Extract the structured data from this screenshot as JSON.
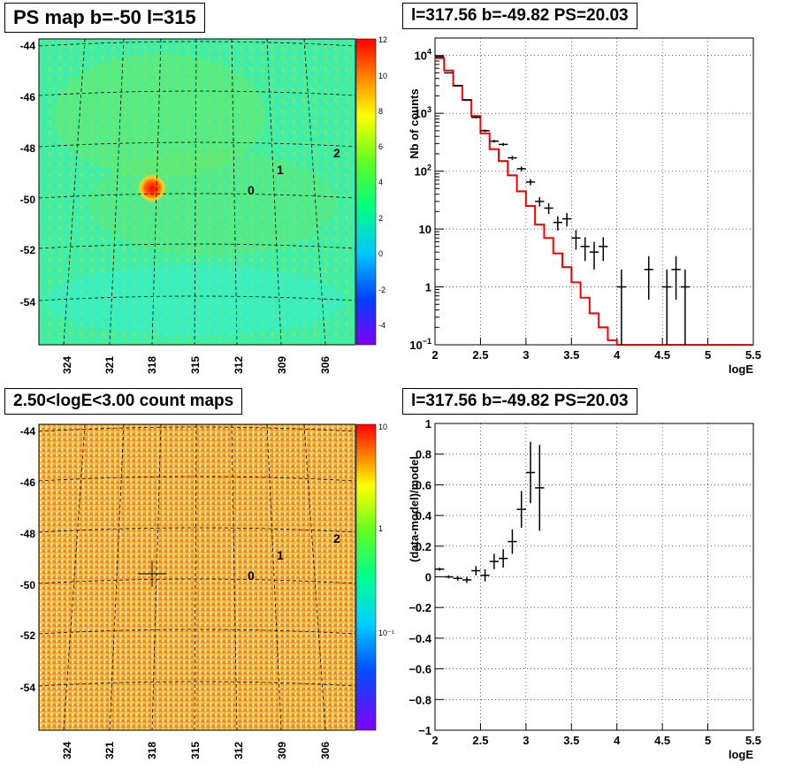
{
  "panels": {
    "top_left": {
      "title": "PS map b=-50 l=315"
    },
    "bottom_left": {
      "title": "2.50<logE<3.00 count maps"
    },
    "top_right": {
      "title": "l=317.56 b=-49.82 PS=20.03"
    },
    "bottom_right": {
      "title": "l=317.56 b=-49.82 PS=20.03"
    }
  },
  "chart_data": [
    {
      "type": "heatmap",
      "title": "PS map b=-50 l=315",
      "y_ticks": [
        "-44",
        "-46",
        "-48",
        "-50",
        "-52",
        "-54"
      ],
      "x_ticks": [
        "324",
        "321",
        "318",
        "315",
        "312",
        "309",
        "306"
      ],
      "colorbar_ticks": [
        "12",
        "10",
        "8",
        "6",
        "4",
        "2",
        "0",
        "-2",
        "-4"
      ],
      "zlim": [
        -5,
        12
      ],
      "markers": [
        "0",
        "1",
        "2"
      ],
      "hotspot": {
        "l": 317.56,
        "b": -49.82
      }
    },
    {
      "type": "line",
      "title": "l=317.56 b=-49.82 PS=20.03",
      "xlabel": "logE",
      "ylabel": "Nb of counts",
      "yscale": "log",
      "xlim": [
        2,
        5.5
      ],
      "ylim": [
        0.1,
        20000
      ],
      "x_ticks": [
        "2",
        "2.5",
        "3",
        "3.5",
        "4",
        "4.5",
        "5",
        "5.5"
      ],
      "grid": true,
      "model_color": "#ff0000",
      "model": {
        "edges": [
          2.0,
          2.1,
          2.2,
          2.3,
          2.4,
          2.5,
          2.6,
          2.7,
          2.8,
          2.9,
          3.0,
          3.1,
          3.2,
          3.3,
          3.4,
          3.5,
          3.6,
          3.7,
          3.8,
          3.9,
          4.0,
          4.1,
          4.2,
          4.3,
          4.4,
          4.5,
          4.6,
          4.7,
          4.8,
          4.9,
          5.0,
          5.1,
          5.2,
          5.3,
          5.4,
          5.5
        ],
        "values": [
          9000,
          5500,
          3000,
          1700,
          900,
          450,
          240,
          150,
          85,
          45,
          25,
          12,
          7,
          3.8,
          2.2,
          1.2,
          0.65,
          0.35,
          0.2,
          0.12,
          0.1,
          0.1,
          0.1,
          0.1,
          0.1,
          0.1,
          0.1,
          0.1,
          0.1,
          0.1,
          0.1,
          0.1,
          0.1,
          0.1,
          0.1
        ]
      },
      "data": [
        {
          "x": 2.05,
          "y": 9500,
          "err": 100
        },
        {
          "x": 2.15,
          "y": 5000,
          "err": 70
        },
        {
          "x": 2.25,
          "y": 3000,
          "err": 55
        },
        {
          "x": 2.35,
          "y": 1700,
          "err": 40
        },
        {
          "x": 2.45,
          "y": 850,
          "err": 30
        },
        {
          "x": 2.55,
          "y": 500,
          "err": 22
        },
        {
          "x": 2.65,
          "y": 330,
          "err": 18
        },
        {
          "x": 2.75,
          "y": 290,
          "err": 17
        },
        {
          "x": 2.85,
          "y": 170,
          "err": 13
        },
        {
          "x": 2.95,
          "y": 110,
          "err": 10
        },
        {
          "x": 3.05,
          "y": 65,
          "err": 8
        },
        {
          "x": 3.15,
          "y": 30,
          "err": 5.5
        },
        {
          "x": 3.25,
          "y": 23,
          "err": 4.8
        },
        {
          "x": 3.35,
          "y": 13,
          "err": 3.6
        },
        {
          "x": 3.45,
          "y": 15,
          "err": 3.9
        },
        {
          "x": 3.55,
          "y": 7,
          "err": 2.6
        },
        {
          "x": 3.65,
          "y": 5,
          "err": 2.2
        },
        {
          "x": 3.75,
          "y": 4,
          "err": 2
        },
        {
          "x": 3.85,
          "y": 5,
          "err": 2.2
        },
        {
          "x": 4.05,
          "y": 1,
          "err": 1
        },
        {
          "x": 4.35,
          "y": 2,
          "err": 1.4
        },
        {
          "x": 4.55,
          "y": 1,
          "err": 1
        },
        {
          "x": 4.65,
          "y": 2,
          "err": 1.4
        },
        {
          "x": 4.75,
          "y": 1,
          "err": 1
        }
      ]
    },
    {
      "type": "heatmap",
      "title": "2.50<logE<3.00 count maps",
      "y_ticks": [
        "-44",
        "-46",
        "-48",
        "-50",
        "-52",
        "-54"
      ],
      "x_ticks": [
        "324",
        "321",
        "318",
        "315",
        "312",
        "309",
        "306"
      ],
      "colorbar_ticks": [
        "10",
        "1",
        "10⁻¹"
      ],
      "zscale": "log",
      "markers": [
        "0",
        "1",
        "2"
      ]
    },
    {
      "type": "scatter",
      "title": "l=317.56 b=-49.82 PS=20.03",
      "xlabel": "logE",
      "ylabel": "(data-model)/model",
      "xlim": [
        2,
        5.5
      ],
      "ylim": [
        -1,
        1
      ],
      "x_ticks": [
        "2",
        "2.5",
        "3",
        "3.5",
        "4",
        "4.5",
        "5",
        "5.5"
      ],
      "y_ticks": [
        "1",
        "0.8",
        "0.6",
        "0.4",
        "0.2",
        "0",
        "−0.2",
        "−0.4",
        "−0.6",
        "−0.8",
        "−1"
      ],
      "grid": true,
      "data": [
        {
          "x": 2.05,
          "y": 0.05,
          "err": 0.01
        },
        {
          "x": 2.15,
          "y": 0.0,
          "err": 0.01
        },
        {
          "x": 2.25,
          "y": -0.01,
          "err": 0.015
        },
        {
          "x": 2.35,
          "y": -0.02,
          "err": 0.02
        },
        {
          "x": 2.45,
          "y": 0.04,
          "err": 0.03
        },
        {
          "x": 2.55,
          "y": 0.01,
          "err": 0.04
        },
        {
          "x": 2.65,
          "y": 0.1,
          "err": 0.05
        },
        {
          "x": 2.75,
          "y": 0.12,
          "err": 0.06
        },
        {
          "x": 2.85,
          "y": 0.23,
          "err": 0.08
        },
        {
          "x": 2.95,
          "y": 0.44,
          "err": 0.12
        },
        {
          "x": 3.05,
          "y": 0.68,
          "err": 0.2
        },
        {
          "x": 3.15,
          "y": 0.58,
          "err": 0.28
        }
      ]
    }
  ]
}
